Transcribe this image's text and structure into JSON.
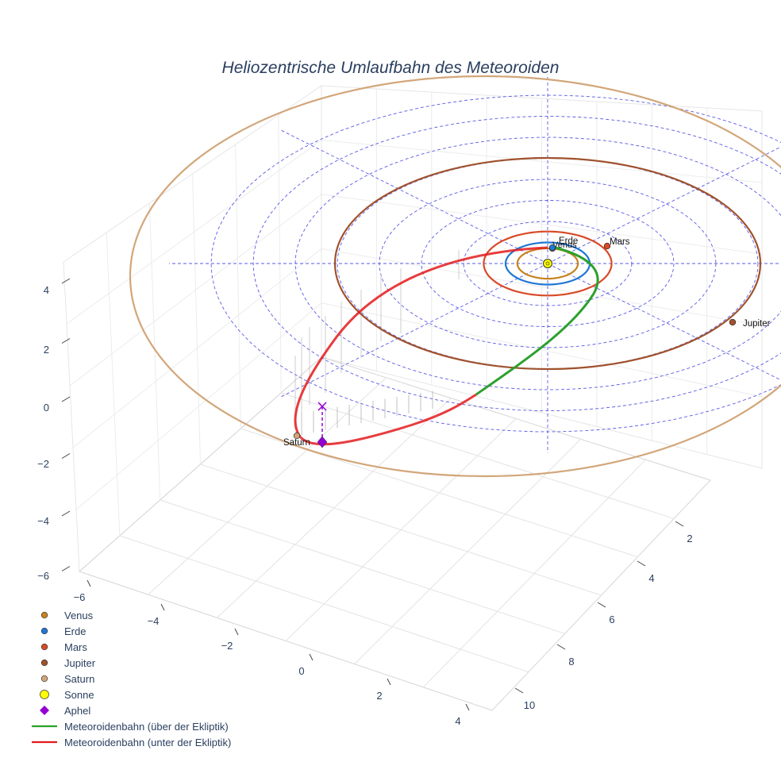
{
  "chart_data": {
    "type": "scatter3d",
    "title": "Heliozentrische Umlaufbahn des Meteoroiden",
    "xaxis": {
      "title": "",
      "range": [
        -6,
        4
      ],
      "tick_labels": [
        "−6",
        "−4",
        "−2",
        "0",
        "2",
        "4"
      ]
    },
    "yaxis": {
      "title": "",
      "range": [
        1,
        11
      ],
      "tick_labels": [
        "2",
        "4",
        "6",
        "8",
        "10"
      ]
    },
    "zaxis": {
      "title": "",
      "range": [
        -6,
        4
      ],
      "tick_labels": [
        "4",
        "2",
        "0",
        "−2",
        "−4",
        "−6"
      ]
    },
    "grid": true,
    "planets": [
      {
        "name": "Venus",
        "orbit_radius_au": 0.72,
        "color": "#c8821e",
        "label": "Venus"
      },
      {
        "name": "Erde",
        "orbit_radius_au": 1.0,
        "color": "#1f77d4",
        "label": "Erde"
      },
      {
        "name": "Mars",
        "orbit_radius_au": 1.52,
        "color": "#d94a28",
        "label": "Mars"
      },
      {
        "name": "Jupiter",
        "orbit_radius_au": 5.2,
        "color": "#a0522d",
        "label": "Jupiter"
      },
      {
        "name": "Saturn",
        "orbit_radius_au": 9.5,
        "color": "#d2a679",
        "label": "Saturn"
      }
    ],
    "sun": {
      "name": "Sonne",
      "color": "#ffff00",
      "position": [
        0,
        0,
        0
      ]
    },
    "aphel": {
      "name": "Aphel",
      "color": "#9400d3"
    },
    "meteoroid_orbit": {
      "above_ecliptic": {
        "name": "Meteoroidenbahn (über der Ekliptik)",
        "color": "#2ca02c"
      },
      "below_ecliptic": {
        "name": "Meteoroidenbahn (unter der Ekliptik)",
        "color": "#e41a1c"
      }
    },
    "legend_position": "bottom-left"
  },
  "legend": [
    {
      "label": "Venus",
      "symbol": "circle",
      "color": "#c8821e"
    },
    {
      "label": "Erde",
      "symbol": "circle",
      "color": "#1f77d4"
    },
    {
      "label": "Mars",
      "symbol": "circle",
      "color": "#d94a28"
    },
    {
      "label": "Jupiter",
      "symbol": "circle",
      "color": "#a0522d"
    },
    {
      "label": "Saturn",
      "symbol": "circle",
      "color": "#d2a679"
    },
    {
      "label": "Sonne",
      "symbol": "circle-large",
      "color": "#ffff00"
    },
    {
      "label": "Aphel",
      "symbol": "diamond",
      "color": "#9400d3"
    },
    {
      "label": "Meteoroidenbahn (über der Ekliptik)",
      "symbol": "line",
      "color": "#2ca02c"
    },
    {
      "label": "Meteoroidenbahn (unter der Ekliptik)",
      "symbol": "line",
      "color": "#e41a1c"
    }
  ]
}
